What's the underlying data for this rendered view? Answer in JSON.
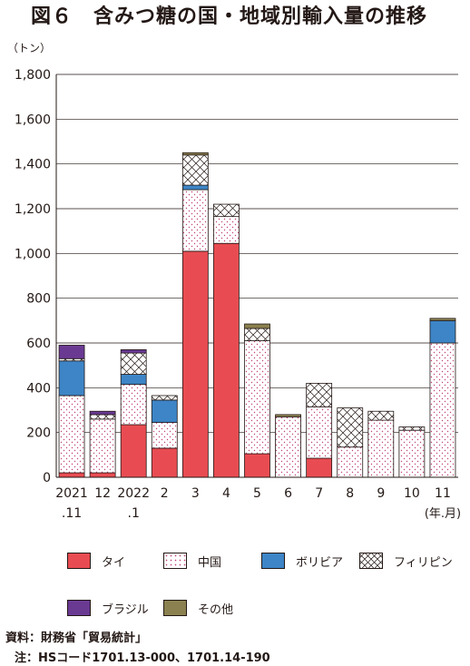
{
  "title": "図６　含みつ糖の国・地域別輸入量の推移",
  "unit_label": "（トン）",
  "source_text": "資料：財務省「貿易統計」",
  "note_text": "注：HSコード1701.13-000、1701.14-190",
  "colors": {
    "thai": "#e84c52",
    "china": "#ffffff",
    "bolivia": "#3d85c6",
    "philippines": "#ffffff",
    "brazil": "#6a3a93",
    "other": "#8b8150"
  },
  "legend": [
    {
      "key": "thai",
      "label": "タイ",
      "pattern": "solid"
    },
    {
      "key": "china",
      "label": "中国",
      "pattern": "dots"
    },
    {
      "key": "bolivia",
      "label": "ボリビア",
      "pattern": "solid"
    },
    {
      "key": "philippines",
      "label": "フィリピン",
      "pattern": "cross"
    },
    {
      "key": "brazil",
      "label": "ブラジル",
      "pattern": "solid"
    },
    {
      "key": "other",
      "label": "その他",
      "pattern": "solid"
    }
  ],
  "chart_data": {
    "type": "bar",
    "stacked": true,
    "categories": [
      "2021\n.11",
      "12",
      "2022\n.1",
      "2",
      "3",
      "4",
      "5",
      "6",
      "7",
      "8",
      "9",
      "10",
      "11"
    ],
    "x_unit_label": "(年.月)",
    "ylabel": "（トン）",
    "ylim": [
      0,
      1800
    ],
    "yticks": [
      0,
      200,
      400,
      600,
      800,
      1000,
      1200,
      1400,
      1600,
      1800
    ],
    "ytick_labels": [
      "0",
      "200",
      "400",
      "600",
      "800",
      "1,000",
      "1,200",
      "1,400",
      "1,600",
      "1,800"
    ],
    "grid": true,
    "series": [
      {
        "name": "タイ",
        "key": "thai",
        "values": [
          20,
          20,
          235,
          130,
          1010,
          1045,
          105,
          0,
          85,
          0,
          0,
          0,
          0
        ]
      },
      {
        "name": "中国",
        "key": "china",
        "values": [
          345,
          240,
          180,
          115,
          275,
          120,
          505,
          270,
          230,
          135,
          255,
          210,
          600
        ]
      },
      {
        "name": "ボリビア",
        "key": "bolivia",
        "values": [
          155,
          0,
          45,
          100,
          20,
          0,
          0,
          0,
          0,
          0,
          0,
          0,
          100
        ]
      },
      {
        "name": "フィリピン",
        "key": "philippines",
        "values": [
          10,
          20,
          95,
          20,
          135,
          55,
          55,
          0,
          105,
          175,
          40,
          15,
          0
        ]
      },
      {
        "name": "ブラジル",
        "key": "brazil",
        "values": [
          60,
          15,
          15,
          0,
          0,
          0,
          0,
          0,
          0,
          0,
          0,
          0,
          0
        ]
      },
      {
        "name": "その他",
        "key": "other",
        "values": [
          0,
          0,
          0,
          0,
          10,
          0,
          20,
          10,
          0,
          0,
          0,
          0,
          10
        ]
      }
    ]
  }
}
